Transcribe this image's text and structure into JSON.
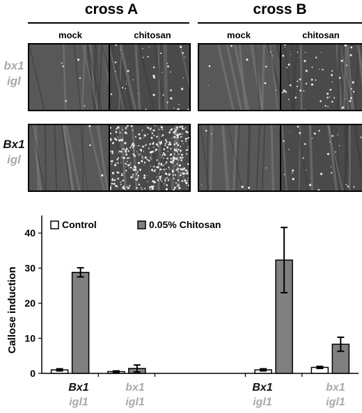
{
  "figure": {
    "crosses": [
      {
        "title": "cross A",
        "columns": [
          "mock",
          "chitosan"
        ]
      },
      {
        "title": "cross B",
        "columns": [
          "mock",
          "chitosan"
        ]
      }
    ],
    "rows": [
      {
        "line1": "bx1",
        "line2": "igl",
        "line1_color": "#aaaaaa",
        "line2_color": "#aaaaaa"
      },
      {
        "line1": "Bx1",
        "line2": "igl",
        "line1_color": "#111111",
        "line2_color": "#aaaaaa"
      }
    ]
  },
  "chart_data": {
    "type": "bar",
    "ylabel": "Callose induction",
    "ylim": [
      0,
      45
    ],
    "yticks": [
      0,
      10,
      20,
      30,
      40
    ],
    "legend_position": "top-left",
    "grid": false,
    "groups": [
      {
        "line1": "Bx1",
        "line2": "igl1",
        "line1_color": "#111111"
      },
      {
        "line1": "bx1",
        "line2": "igl1",
        "line1_color": "#aaaaaa"
      },
      {
        "line1": "Bx1",
        "line2": "igl1",
        "line1_color": "#111111"
      },
      {
        "line1": "bx1",
        "line2": "igl1",
        "line1_color": "#aaaaaa"
      }
    ],
    "series": [
      {
        "name": "Control",
        "color": "#ffffff",
        "values": [
          1.0,
          0.5,
          1.0,
          1.7
        ],
        "errors": [
          0.3,
          0.2,
          0.3,
          0.3
        ]
      },
      {
        "name": "0.05% Chitosan",
        "color": "#808080",
        "values": [
          28.8,
          1.4,
          32.3,
          8.3
        ],
        "errors": [
          1.3,
          1.0,
          9.3,
          2.0
        ]
      }
    ]
  }
}
